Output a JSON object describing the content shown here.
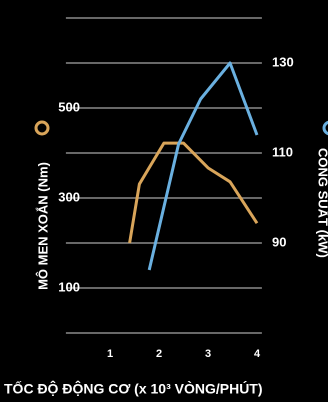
{
  "chart_data": {
    "type": "line",
    "x_label": "TỐC ĐỘ ĐỘNG CƠ (x 10³ VÒNG/PHÚT)",
    "y_label": "MÔ MEN XOẮN (Nm)",
    "y2_label": "CÔNG SUẤT (kW)",
    "xlim": [
      0.1,
      4.1
    ],
    "xticks": [
      1,
      2,
      3,
      4
    ],
    "ylim": [
      0,
      700
    ],
    "yticks": [
      100,
      300,
      500
    ],
    "y2lim": [
      70,
      140
    ],
    "y2ticks": [
      90,
      110,
      130
    ],
    "grid": true,
    "ygrid": [
      0,
      100,
      200,
      300,
      400,
      500,
      600,
      700
    ],
    "series": [
      {
        "name": "MÔ MEN XOẮN (Nm)",
        "color": "#d9a55a",
        "x": [
          1.4,
          1.6,
          2.1,
          2.5,
          3.0,
          3.45,
          4.0
        ],
        "values": [
          200,
          331,
          422,
          422,
          367,
          336,
          244
        ]
      },
      {
        "name": "CÔNG SUẤT (kW)",
        "color": "#6ab0e0",
        "axis": "y2",
        "x": [
          1.8,
          2.4,
          2.85,
          3.45,
          4.0
        ],
        "values": [
          84,
          112,
          122,
          130,
          114
        ]
      }
    ]
  }
}
